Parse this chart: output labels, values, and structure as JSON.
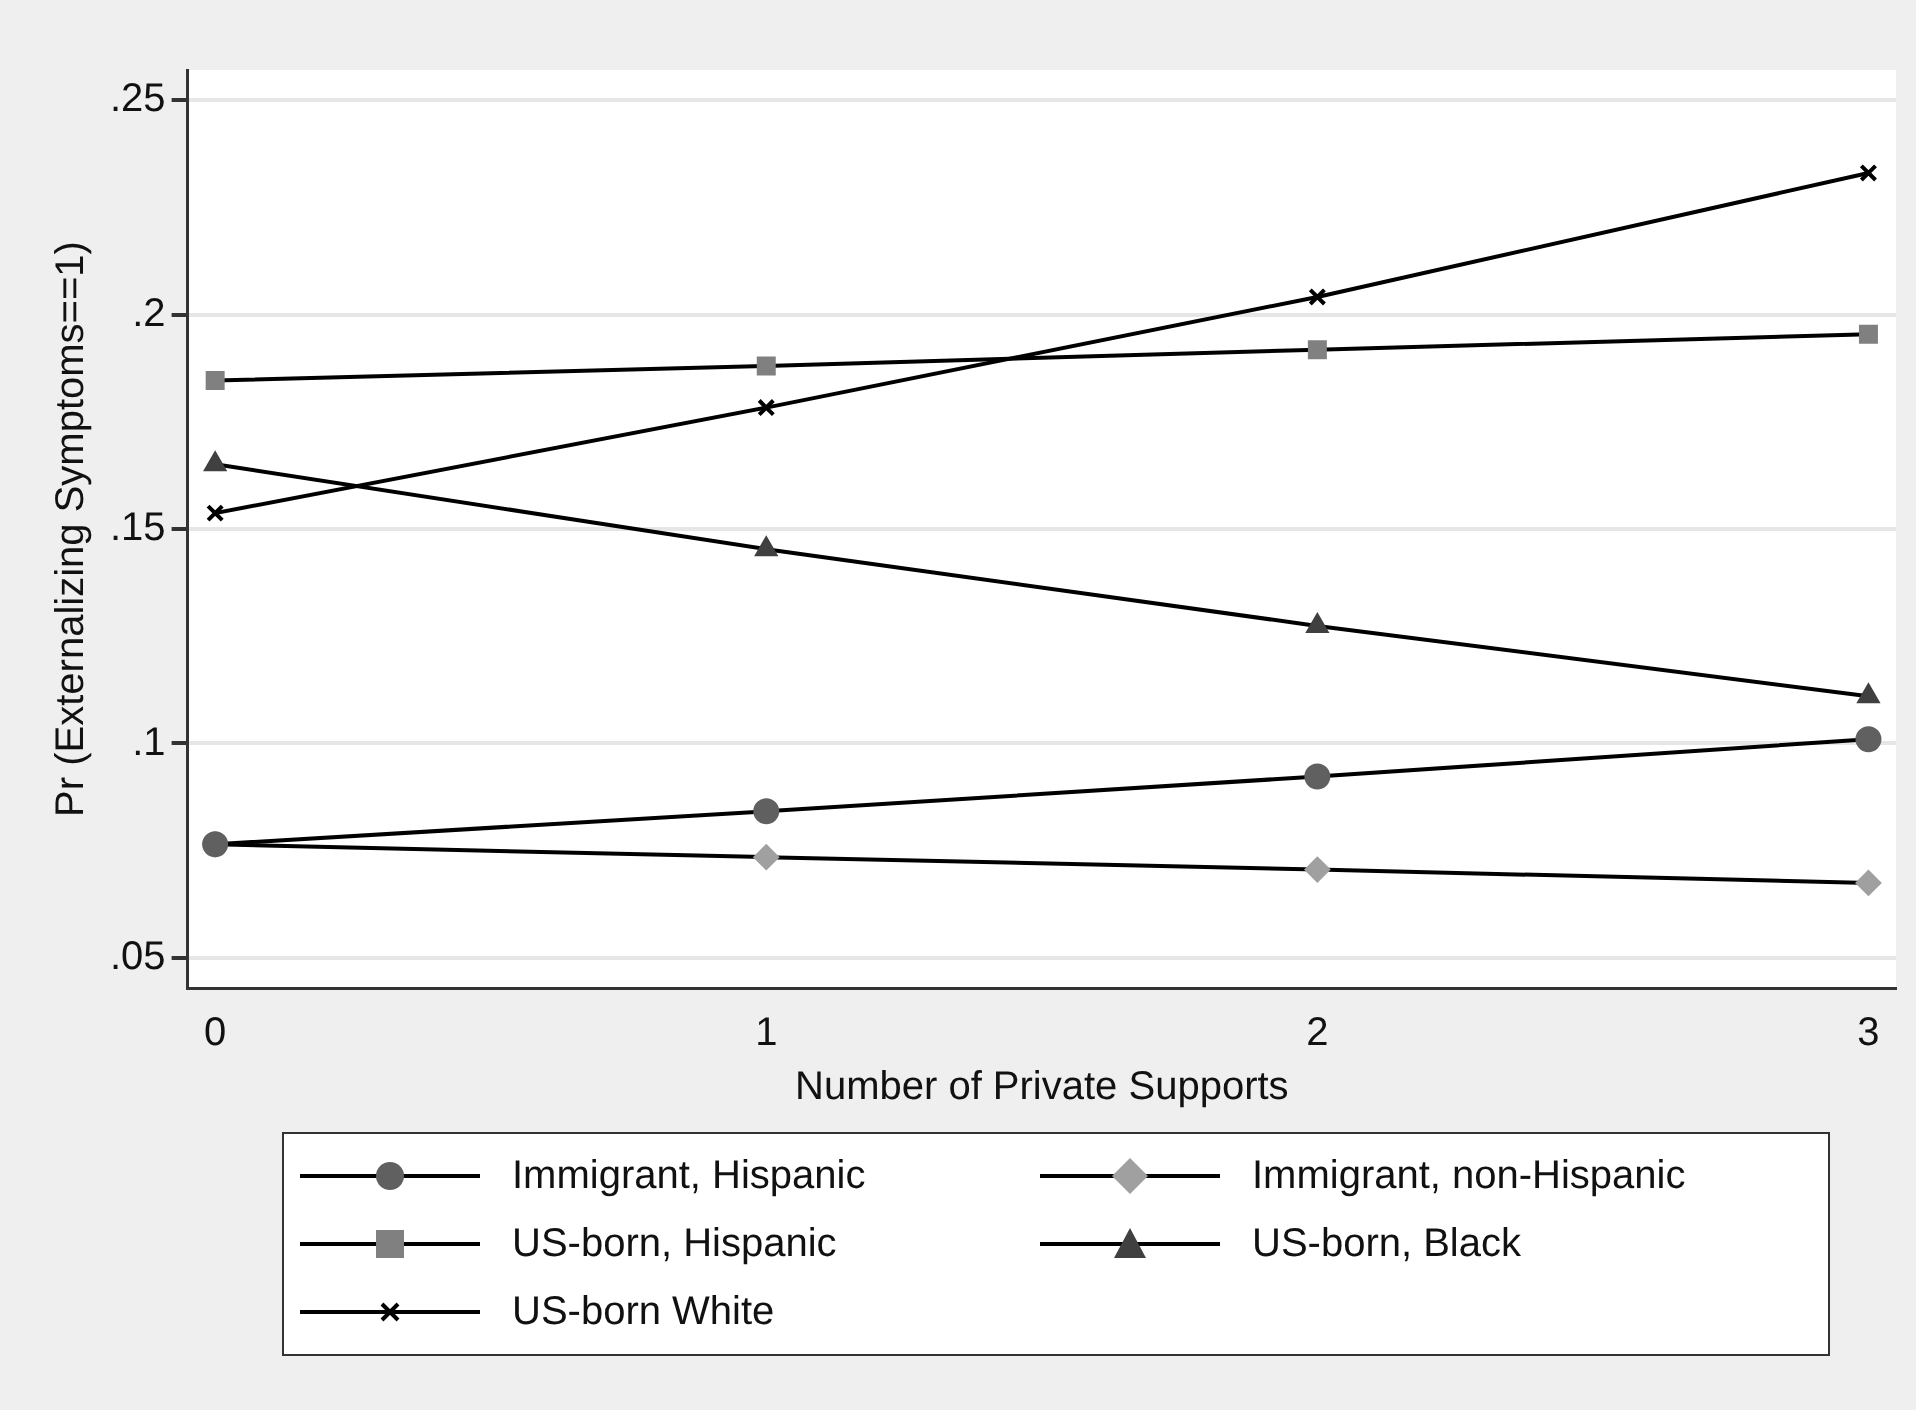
{
  "chart_data": {
    "type": "line",
    "xlabel": "Number of Private Supports",
    "ylabel": "Pr (Externalizing Symptoms==1)",
    "x": [
      0,
      1,
      2,
      3
    ],
    "xlim": [
      -0.05,
      3.05
    ],
    "xticks": [
      0,
      1,
      2,
      3
    ],
    "ylim": [
      0.043,
      0.257
    ],
    "yticks": [
      {
        "value": 0.05,
        "label": ".05"
      },
      {
        "value": 0.1,
        "label": ".1"
      },
      {
        "value": 0.15,
        "label": ".15"
      },
      {
        "value": 0.2,
        "label": ".2"
      },
      {
        "value": 0.25,
        "label": ".25"
      }
    ],
    "grid": "y",
    "legend": "bottom",
    "line_style": "solid",
    "series": [
      {
        "name": "Immigrant, Hispanic",
        "color": "#606060",
        "marker": "circle",
        "values": [
          0.0765,
          0.0842,
          0.0923,
          0.101
        ]
      },
      {
        "name": "Immigrant, non-Hispanic",
        "color": "#a0a0a0",
        "marker": "diamond",
        "values": [
          0.0765,
          0.0735,
          0.0706,
          0.0675
        ]
      },
      {
        "name": "US-born, Hispanic",
        "color": "#808080",
        "marker": "square",
        "values": [
          0.1846,
          0.188,
          0.1918,
          0.1954
        ]
      },
      {
        "name": "US-born, Black",
        "color": "#404040",
        "marker": "triangle",
        "values": [
          0.1651,
          0.1453,
          0.1274,
          0.111
        ]
      },
      {
        "name": "US-born White",
        "color": "#000000",
        "marker": "cross",
        "values": [
          0.1537,
          0.1783,
          0.2041,
          0.233
        ]
      }
    ]
  }
}
